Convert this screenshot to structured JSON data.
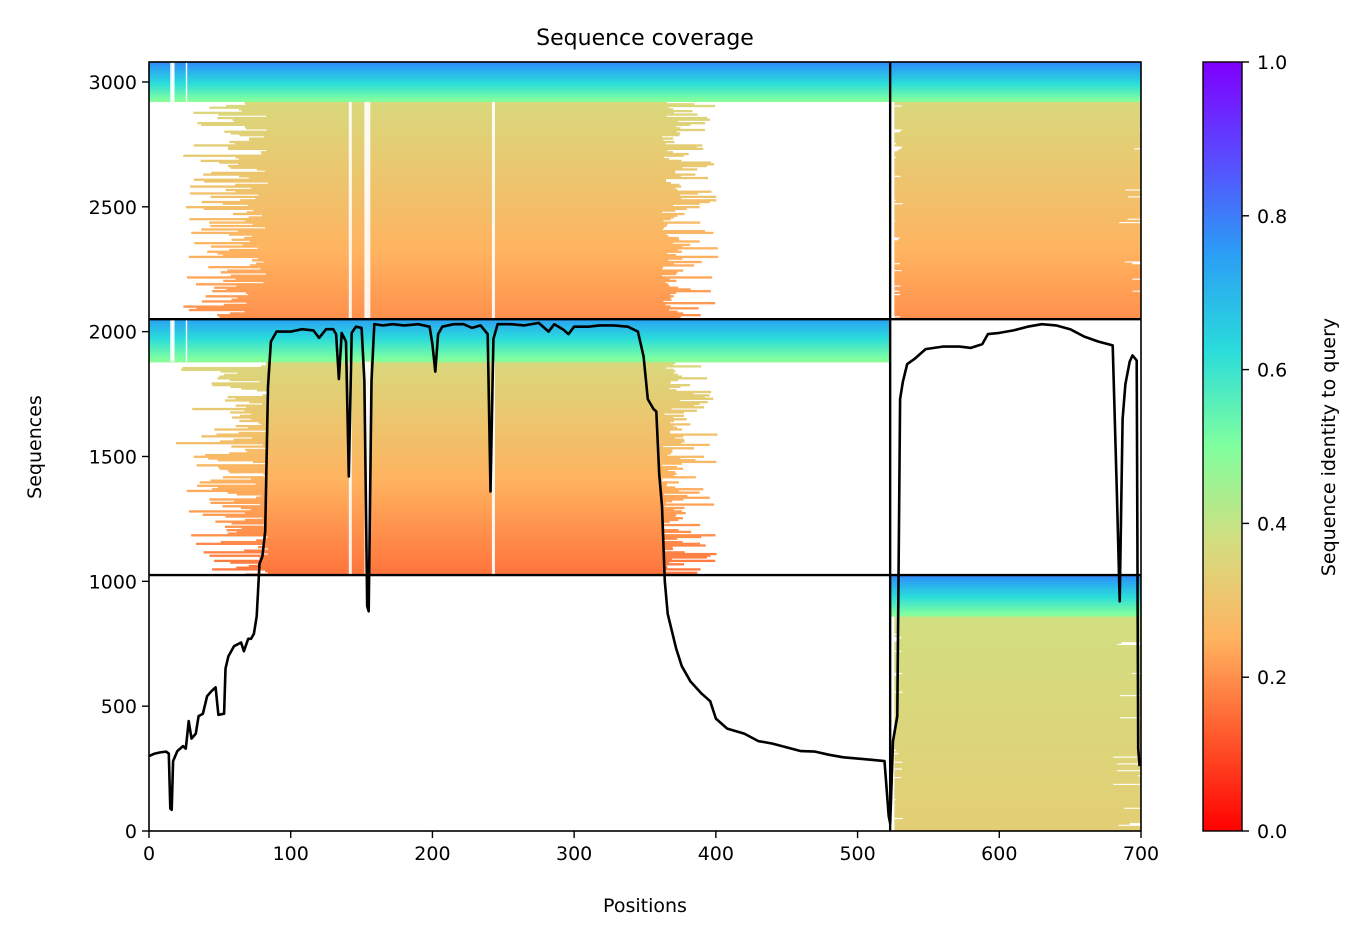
{
  "chart_data": {
    "type": "heatmap",
    "title": "Sequence coverage",
    "xlabel": "Positions",
    "ylabel": "Sequences",
    "xlim": [
      0,
      700
    ],
    "ylim": [
      0,
      3080
    ],
    "x_ticks": [
      "0",
      "100",
      "200",
      "300",
      "400",
      "500",
      "600",
      "700"
    ],
    "y_ticks": [
      "0",
      "500",
      "1000",
      "1500",
      "2000",
      "2500",
      "3000"
    ],
    "x_tick_values": [
      0,
      100,
      200,
      300,
      400,
      500,
      600,
      700
    ],
    "y_tick_values": [
      0,
      500,
      1000,
      1500,
      2000,
      2500,
      3000
    ],
    "colorbar": {
      "label": "Sequence identity to query",
      "colormap": "rainbow_r",
      "range": [
        0,
        1
      ],
      "ticks": [
        "0.0",
        "0.2",
        "0.4",
        "0.6",
        "0.8",
        "1.0"
      ],
      "tick_values": [
        0,
        0.2,
        0.4,
        0.6,
        0.8,
        1.0
      ]
    },
    "chain_boundary_x": 523,
    "block_boundaries_y": [
      1025,
      2050
    ],
    "blocks": [
      {
        "segments": [
          {
            "x_start": 0,
            "x_end": 523,
            "y_start": 2050,
            "y_end": 3080,
            "identity_top": 0.78,
            "identity_bottom": 0.2,
            "core_x": [
              84,
              362
            ],
            "high_identity_band": [
              2920,
              3080
            ]
          },
          {
            "x_start": 523,
            "x_end": 700,
            "y_start": 2050,
            "y_end": 3080,
            "identity_top": 0.78,
            "identity_bottom": 0.2,
            "core_x": [
              526,
              700
            ],
            "high_identity_band": [
              2920,
              3080
            ]
          }
        ]
      },
      {
        "segments": [
          {
            "x_start": 0,
            "x_end": 523,
            "y_start": 1025,
            "y_end": 2050,
            "identity_top": 0.74,
            "identity_bottom": 0.16,
            "core_x": [
              84,
              362
            ],
            "high_identity_band": [
              1880,
              2050
            ]
          }
        ]
      },
      {
        "segments": [
          {
            "x_start": 523,
            "x_end": 700,
            "y_start": 0,
            "y_end": 1025,
            "identity_top": 0.78,
            "identity_bottom": 0.33,
            "core_x": [
              526,
              700
            ],
            "high_identity_band": [
              860,
              1025
            ]
          }
        ]
      }
    ],
    "coverage_line": {
      "color": "#000000",
      "points": [
        [
          0,
          300
        ],
        [
          4,
          310
        ],
        [
          8,
          315
        ],
        [
          12,
          318
        ],
        [
          14,
          310
        ],
        [
          15,
          90
        ],
        [
          16,
          85
        ],
        [
          17,
          280
        ],
        [
          20,
          320
        ],
        [
          24,
          340
        ],
        [
          26,
          330
        ],
        [
          28,
          440
        ],
        [
          30,
          370
        ],
        [
          33,
          390
        ],
        [
          35,
          460
        ],
        [
          38,
          470
        ],
        [
          41,
          540
        ],
        [
          44,
          560
        ],
        [
          47,
          575
        ],
        [
          49,
          465
        ],
        [
          53,
          470
        ],
        [
          54,
          650
        ],
        [
          56,
          700
        ],
        [
          60,
          740
        ],
        [
          65,
          755
        ],
        [
          67,
          720
        ],
        [
          70,
          770
        ],
        [
          72,
          770
        ],
        [
          74,
          790
        ],
        [
          76,
          860
        ],
        [
          78,
          1070
        ],
        [
          80,
          1100
        ],
        [
          82,
          1200
        ],
        [
          84,
          1780
        ],
        [
          86,
          1960
        ],
        [
          90,
          2000
        ],
        [
          100,
          2000
        ],
        [
          108,
          2010
        ],
        [
          116,
          2005
        ],
        [
          120,
          1975
        ],
        [
          125,
          2010
        ],
        [
          130,
          2010
        ],
        [
          132,
          1990
        ],
        [
          134,
          1810
        ],
        [
          136,
          1995
        ],
        [
          139,
          1960
        ],
        [
          141,
          1420
        ],
        [
          143,
          1995
        ],
        [
          146,
          2020
        ],
        [
          150,
          2015
        ],
        [
          152,
          1800
        ],
        [
          154,
          900
        ],
        [
          155,
          880
        ],
        [
          157,
          1800
        ],
        [
          159,
          2030
        ],
        [
          165,
          2025
        ],
        [
          172,
          2030
        ],
        [
          180,
          2025
        ],
        [
          190,
          2030
        ],
        [
          198,
          2020
        ],
        [
          200,
          1950
        ],
        [
          202,
          1840
        ],
        [
          204,
          1990
        ],
        [
          207,
          2020
        ],
        [
          215,
          2030
        ],
        [
          222,
          2030
        ],
        [
          228,
          2015
        ],
        [
          234,
          2025
        ],
        [
          239,
          1990
        ],
        [
          241,
          1360
        ],
        [
          243,
          1970
        ],
        [
          246,
          2030
        ],
        [
          255,
          2030
        ],
        [
          265,
          2025
        ],
        [
          275,
          2035
        ],
        [
          282,
          2000
        ],
        [
          286,
          2030
        ],
        [
          292,
          2010
        ],
        [
          296,
          1990
        ],
        [
          300,
          2020
        ],
        [
          310,
          2020
        ],
        [
          318,
          2025
        ],
        [
          328,
          2025
        ],
        [
          338,
          2020
        ],
        [
          345,
          2000
        ],
        [
          349,
          1900
        ],
        [
          352,
          1730
        ],
        [
          356,
          1690
        ],
        [
          358,
          1680
        ],
        [
          360,
          1430
        ],
        [
          362,
          1300
        ],
        [
          364,
          1000
        ],
        [
          366,
          870
        ],
        [
          372,
          730
        ],
        [
          376,
          660
        ],
        [
          382,
          600
        ],
        [
          390,
          550
        ],
        [
          396,
          520
        ],
        [
          400,
          450
        ],
        [
          408,
          410
        ],
        [
          420,
          390
        ],
        [
          430,
          360
        ],
        [
          440,
          350
        ],
        [
          450,
          335
        ],
        [
          460,
          320
        ],
        [
          470,
          318
        ],
        [
          480,
          305
        ],
        [
          490,
          295
        ],
        [
          500,
          290
        ],
        [
          510,
          285
        ],
        [
          519,
          280
        ],
        [
          522,
          60
        ],
        [
          523,
          30
        ],
        [
          525,
          360
        ],
        [
          528,
          460
        ],
        [
          530,
          1730
        ],
        [
          532,
          1800
        ],
        [
          535,
          1870
        ],
        [
          540,
          1890
        ],
        [
          548,
          1930
        ],
        [
          560,
          1940
        ],
        [
          572,
          1940
        ],
        [
          580,
          1935
        ],
        [
          588,
          1950
        ],
        [
          592,
          1990
        ],
        [
          600,
          1995
        ],
        [
          610,
          2005
        ],
        [
          620,
          2020
        ],
        [
          630,
          2030
        ],
        [
          640,
          2025
        ],
        [
          650,
          2010
        ],
        [
          660,
          1980
        ],
        [
          670,
          1960
        ],
        [
          680,
          1945
        ],
        [
          683,
          1350
        ],
        [
          685,
          920
        ],
        [
          687,
          1650
        ],
        [
          689,
          1790
        ],
        [
          692,
          1880
        ],
        [
          694,
          1905
        ],
        [
          697,
          1885
        ],
        [
          698,
          330
        ],
        [
          699,
          260
        ]
      ]
    }
  }
}
